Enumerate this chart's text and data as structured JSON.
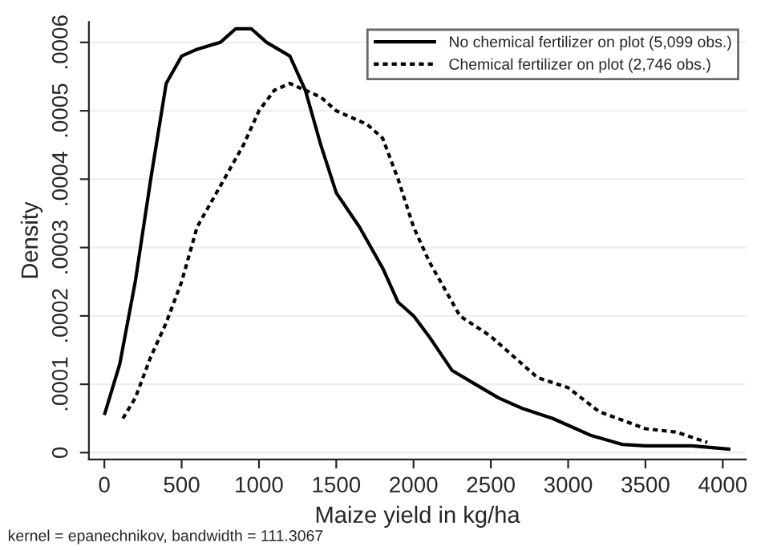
{
  "chart_data": {
    "type": "line",
    "xlabel": "Maize yield in kg/ha",
    "ylabel": "Density",
    "annotations": [
      "kernel = epanechnikov, bandwidth = 111.3067"
    ],
    "series": [
      {
        "name": "No chemical fertilizer on plot (5,099 obs.)",
        "color": "#000000",
        "line_style": "solid",
        "x": [
          0,
          100,
          200,
          300,
          400,
          500,
          600,
          750,
          850,
          950,
          1050,
          1200,
          1300,
          1400,
          1500,
          1650,
          1800,
          1900,
          2000,
          2100,
          2250,
          2400,
          2550,
          2700,
          2900,
          3000,
          3150,
          3350,
          3500,
          3800,
          4050
        ],
        "values": [
          5.5e-05,
          0.00013,
          0.00025,
          0.0004,
          0.00054,
          0.00058,
          0.00059,
          0.0006,
          0.00062,
          0.00062,
          0.0006,
          0.00058,
          0.00053,
          0.00045,
          0.00038,
          0.00033,
          0.00027,
          0.00022,
          0.0002,
          0.00017,
          0.00012,
          0.0001,
          8e-05,
          6.5e-05,
          5e-05,
          4e-05,
          2.5e-05,
          1.2e-05,
          1e-05,
          1e-05,
          5e-06
        ]
      },
      {
        "name": "Chemical fertilizer on plot (2,746 obs.)",
        "color": "#000000",
        "line_style": "dotted",
        "x": [
          120,
          200,
          300,
          400,
          500,
          600,
          700,
          800,
          900,
          1000,
          1100,
          1200,
          1300,
          1400,
          1500,
          1600,
          1700,
          1800,
          1900,
          2000,
          2100,
          2300,
          2500,
          2700,
          2800,
          3000,
          3200,
          3500,
          3700,
          3900
        ],
        "values": [
          5e-05,
          8e-05,
          0.00014,
          0.00019,
          0.00025,
          0.00033,
          0.00037,
          0.00041,
          0.00045,
          0.0005,
          0.00053,
          0.00054,
          0.00053,
          0.00052,
          0.0005,
          0.00049,
          0.00048,
          0.00046,
          0.0004,
          0.00033,
          0.00028,
          0.0002,
          0.00017,
          0.00013,
          0.00011,
          9.5e-05,
          6e-05,
          3.5e-05,
          3e-05,
          1.5e-05
        ]
      }
    ],
    "xlim": [
      -100,
      4150
    ],
    "ylim": [
      -1e-05,
      0.00063
    ],
    "xticks": [
      0,
      500,
      1000,
      1500,
      2000,
      2500,
      3000,
      3500,
      4000
    ],
    "yticks": [
      {
        "value": 0,
        "label": "0"
      },
      {
        "value": 0.0001,
        "label": ".0001"
      },
      {
        "value": 0.0002,
        "label": ".0002"
      },
      {
        "value": 0.0003,
        "label": ".0003"
      },
      {
        "value": 0.0004,
        "label": ".0004"
      },
      {
        "value": 0.0005,
        "label": ".0005"
      },
      {
        "value": 0.0006,
        "label": ".0006"
      }
    ],
    "grid": "y",
    "legend": "top right"
  }
}
